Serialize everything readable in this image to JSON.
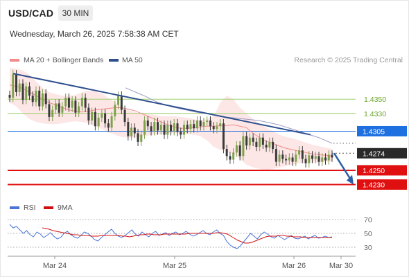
{
  "header": {
    "symbol": "USD/CAD",
    "timeframe": "30 MIN",
    "datetime": "Wednesday, March 26, 2025 7:58:38 AM CET"
  },
  "legend": {
    "ma20_label": "MA 20 + Bollinger Bands",
    "ma50_label": "MA 50",
    "credit": "Research © 2025 Trading Central",
    "rsi_label": "RSI",
    "rsi_ma_label": "9MA"
  },
  "colors": {
    "ma20": "#f28b8b",
    "ma50": "#2d4f8e",
    "up_candle": "#7da24a",
    "down_candle": "#3a3a3a",
    "resistance_green": "#9acd6a",
    "pivot_blue": "#1e6fe0",
    "support_red": "#e01010",
    "forecast_arrow": "#2a5fa8",
    "rsi": "#4a74d8",
    "rsi_ma": "#d01010",
    "band_fill": "#fbd2d2"
  },
  "chart_data": {
    "type": "candlestick",
    "symbol": "USD/CAD",
    "timeframe": "30 MIN",
    "y_range": [
      1.4211,
      1.4395
    ],
    "x_ticks": [
      "Mar 24",
      "Mar 25",
      "Mar 26",
      "Mar 30"
    ],
    "levels": [
      {
        "value": "1.4350",
        "kind": "resistance"
      },
      {
        "value": "1.4330",
        "kind": "resistance"
      },
      {
        "value": "1.4305",
        "kind": "pivot"
      },
      {
        "value": "1.4274",
        "kind": "last"
      },
      {
        "value": "1.4250",
        "kind": "support"
      },
      {
        "value": "1.4230",
        "kind": "support"
      }
    ],
    "trendline": {
      "from": 1.4386,
      "to": 1.43
    },
    "price_path": [
      1.4352,
      1.4385,
      1.436,
      1.4372,
      1.4349,
      1.4368,
      1.4355,
      1.4346,
      1.4362,
      1.434,
      1.4358,
      1.4343,
      1.4325,
      1.4335,
      1.4344,
      1.4331,
      1.434,
      1.4352,
      1.4338,
      1.4348,
      1.4331,
      1.434,
      1.4352,
      1.4338,
      1.432,
      1.4332,
      1.4312,
      1.4324,
      1.433,
      1.4316,
      1.431,
      1.4326,
      1.4342,
      1.4355,
      1.4335,
      1.4318,
      1.4298,
      1.431,
      1.4302,
      1.429,
      1.43,
      1.432,
      1.4312,
      1.4305,
      1.4318,
      1.4306,
      1.4314,
      1.43,
      1.4314,
      1.4305,
      1.4316,
      1.4304,
      1.43,
      1.4314,
      1.4308,
      1.4315,
      1.4309,
      1.432,
      1.4312,
      1.4318,
      1.432,
      1.4312,
      1.4308,
      1.4312,
      1.4316,
      1.428,
      1.427,
      1.4265,
      1.4275,
      1.4285,
      1.427,
      1.4298,
      1.4285,
      1.4296,
      1.429,
      1.4283,
      1.4296,
      1.4286,
      1.4282,
      1.429,
      1.428,
      1.4262,
      1.4272,
      1.4266,
      1.4264,
      1.4268,
      1.4262,
      1.4272,
      1.4278,
      1.4266,
      1.426,
      1.4271,
      1.4266,
      1.427,
      1.4262,
      1.4268,
      1.4264,
      1.4272,
      1.4268
    ],
    "ma20": [
      1.437,
      1.4368,
      1.4365,
      1.436,
      1.4355,
      1.435,
      1.4345,
      1.4342,
      1.4338,
      1.4335,
      1.4333,
      1.4332,
      1.4333,
      1.4335,
      1.4336,
      1.4337,
      1.4338,
      1.4338,
      1.4336,
      1.4334,
      1.433,
      1.4326,
      1.4322,
      1.4318,
      1.4314,
      1.4311,
      1.4309,
      1.4309,
      1.431,
      1.4311,
      1.4312,
      1.4312,
      1.4313,
      1.4313,
      1.4314,
      1.4312,
      1.431,
      1.4302,
      1.4296,
      1.4291,
      1.4288,
      1.4284,
      1.4281,
      1.4279,
      1.4277,
      1.4275,
      1.4273,
      1.4272,
      1.4271,
      1.427
    ],
    "band_upper": [
      1.4394,
      1.4393,
      1.439,
      1.4385,
      1.4375,
      1.4366,
      1.436,
      1.4357,
      1.4355,
      1.4355,
      1.4356,
      1.436,
      1.4362,
      1.4361,
      1.4358,
      1.4352,
      1.4346,
      1.434,
      1.4335,
      1.4332,
      1.433,
      1.4329,
      1.4328,
      1.4326,
      1.4326,
      1.4326,
      1.4325,
      1.4324,
      1.4322,
      1.432,
      1.4322,
      1.4326,
      1.4345,
      1.4355,
      1.435,
      1.4338,
      1.433,
      1.4322,
      1.4315,
      1.431,
      1.4305,
      1.43,
      1.4297,
      1.4295,
      1.4292,
      1.4289,
      1.4286,
      1.4284,
      1.4282,
      1.428
    ],
    "band_lower": [
      1.4345,
      1.434,
      1.433,
      1.4322,
      1.4318,
      1.4316,
      1.4315,
      1.4315,
      1.4316,
      1.4318,
      1.4319,
      1.4318,
      1.4316,
      1.4312,
      1.4308,
      1.4304,
      1.43,
      1.4297,
      1.4296,
      1.4296,
      1.4297,
      1.4299,
      1.43,
      1.4301,
      1.4302,
      1.4302,
      1.4302,
      1.4301,
      1.43,
      1.4298,
      1.4292,
      1.4283,
      1.4279,
      1.4276,
      1.4273,
      1.4266,
      1.4258,
      1.4254,
      1.4252,
      1.425,
      1.4252,
      1.4254,
      1.4256,
      1.4258,
      1.426,
      1.426,
      1.4261,
      1.4261,
      1.4262,
      1.4262
    ],
    "ma50": [
      1.4366,
      1.4362,
      1.4358,
      1.4354,
      1.4349,
      1.4345,
      1.4342,
      1.4339,
      1.4337,
      1.4335,
      1.4333,
      1.4331,
      1.433,
      1.4328,
      1.4327,
      1.4325,
      1.4324,
      1.4323,
      1.4322,
      1.4321,
      1.432,
      1.4318,
      1.4316,
      1.4314,
      1.4311,
      1.4308,
      1.4305,
      1.4302,
      1.4299,
      1.4296,
      1.4292,
      1.4288
    ],
    "forecast": {
      "from": 1.4274,
      "to": 1.423
    },
    "rsi": {
      "y_range": [
        20,
        80
      ],
      "ticks": [
        "70",
        "50",
        "30"
      ],
      "values": [
        63,
        58,
        60,
        55,
        50,
        54,
        48,
        45,
        52,
        49,
        44,
        47,
        51,
        46,
        42,
        44,
        50,
        53,
        48,
        45,
        43,
        47,
        52,
        50,
        46,
        41,
        39,
        44,
        48,
        52,
        56,
        50,
        46,
        44,
        47,
        51,
        55,
        49,
        46,
        52,
        48,
        45,
        50,
        53,
        47,
        49,
        51,
        47,
        50,
        52,
        48,
        50,
        53,
        49,
        46,
        48,
        51,
        54,
        50,
        48,
        52,
        55,
        50,
        47,
        38,
        33,
        30,
        28,
        32,
        38,
        44,
        50,
        46,
        42,
        48,
        52,
        49,
        45,
        43,
        47,
        44,
        41,
        44,
        47,
        43,
        42,
        44,
        46,
        42,
        45,
        47,
        43,
        44,
        46,
        44,
        45
      ],
      "ma": [
        58,
        57,
        56,
        54,
        53,
        52,
        51,
        50,
        49,
        48,
        48,
        47,
        47,
        47,
        46,
        46,
        46,
        47,
        47,
        47,
        47,
        47,
        47,
        46,
        46,
        45,
        46,
        47,
        48,
        48,
        49,
        49,
        48,
        48,
        48,
        49,
        49,
        49,
        49,
        49,
        49,
        49,
        50,
        50,
        50,
        50,
        50,
        50,
        50,
        50,
        51,
        51,
        50,
        49,
        46,
        43,
        40,
        38,
        36,
        36,
        37,
        39,
        41,
        43,
        45,
        46,
        46,
        46,
        47,
        47,
        46,
        46,
        45,
        45,
        45,
        44,
        44,
        44,
        44,
        44,
        44,
        44,
        44,
        44
      ]
    }
  }
}
